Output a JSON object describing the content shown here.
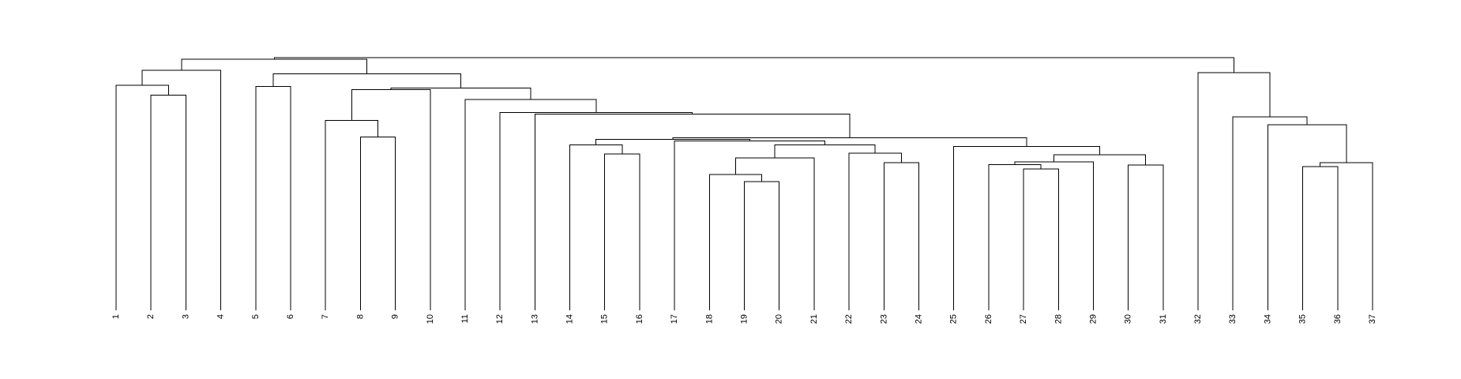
{
  "chart_data": {
    "type": "dendrogram",
    "title": "",
    "xlabel": "",
    "ylabel": "",
    "leaves": [
      "1",
      "2",
      "3",
      "4",
      "5",
      "6",
      "7",
      "8",
      "9",
      "10",
      "11",
      "12",
      "13",
      "14",
      "15",
      "16",
      "17",
      "18",
      "19",
      "20",
      "21",
      "22",
      "23",
      "24",
      "25",
      "26",
      "27",
      "28",
      "29",
      "30",
      "31",
      "32",
      "33",
      "34",
      "35",
      "36",
      "37"
    ],
    "height_range": [
      0,
      1
    ],
    "merges": [
      [
        -35,
        -36,
        0.569
      ],
      [
        -19,
        -20,
        0.509
      ],
      [
        -27,
        -28,
        0.56
      ],
      [
        -23,
        -24,
        0.585
      ],
      [
        -30,
        -31,
        0.575
      ],
      [
        -26,
        3,
        0.577
      ],
      [
        -29,
        6,
        0.588
      ],
      [
        -18,
        2,
        0.538
      ],
      [
        -37,
        1,
        0.585
      ],
      [
        -15,
        -16,
        0.618
      ],
      [
        -8,
        -9,
        0.686
      ],
      [
        -22,
        4,
        0.622
      ],
      [
        8,
        -21,
        0.603
      ],
      [
        7,
        5,
        0.615
      ],
      [
        -14,
        10,
        0.654
      ],
      [
        13,
        12,
        0.654
      ],
      [
        -25,
        14,
        0.649
      ],
      [
        -17,
        16,
        0.671
      ],
      [
        15,
        18,
        0.676
      ],
      [
        19,
        17,
        0.683
      ],
      [
        -34,
        9,
        0.734
      ],
      [
        -13,
        20,
        0.776
      ],
      [
        -7,
        11,
        0.751
      ],
      [
        -12,
        22,
        0.783
      ],
      [
        -2,
        -3,
        0.852
      ],
      [
        -11,
        24,
        0.834
      ],
      [
        -5,
        -6,
        0.886
      ],
      [
        -33,
        21,
        0.766
      ],
      [
        23,
        -10,
        0.874
      ],
      [
        29,
        26,
        0.879
      ],
      [
        -1,
        25,
        0.89
      ],
      [
        27,
        30,
        0.936
      ],
      [
        -32,
        28,
        0.94
      ],
      [
        31,
        -4,
        0.95
      ],
      [
        34,
        32,
        0.993
      ],
      [
        35,
        33,
        1.0
      ]
    ],
    "colors": {
      "line": "#000000",
      "label": "#000000",
      "background": "#ffffff"
    }
  }
}
